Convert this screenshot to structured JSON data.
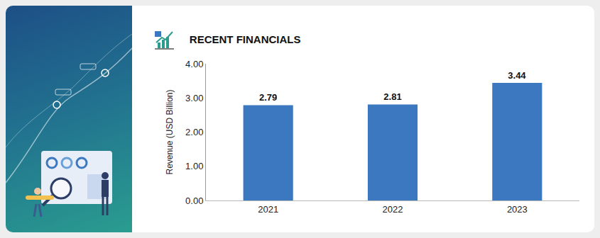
{
  "chart_data": {
    "type": "bar",
    "title": "RECENT FINANCIALS",
    "y_label": "Revenue (USD Billion)",
    "categories": [
      "2021",
      "2022",
      "2023"
    ],
    "values": [
      2.79,
      2.81,
      3.44
    ],
    "color": "#3b78bf",
    "ylim": [
      0,
      4
    ],
    "yticks": [
      {
        "value": 0,
        "label": "0.00"
      },
      {
        "value": 1,
        "label": "1.00"
      },
      {
        "value": 2,
        "label": "2.00"
      },
      {
        "value": 3,
        "label": "3.00"
      },
      {
        "value": 4,
        "label": "4.00"
      }
    ],
    "grid": false,
    "data_labels": true
  }
}
